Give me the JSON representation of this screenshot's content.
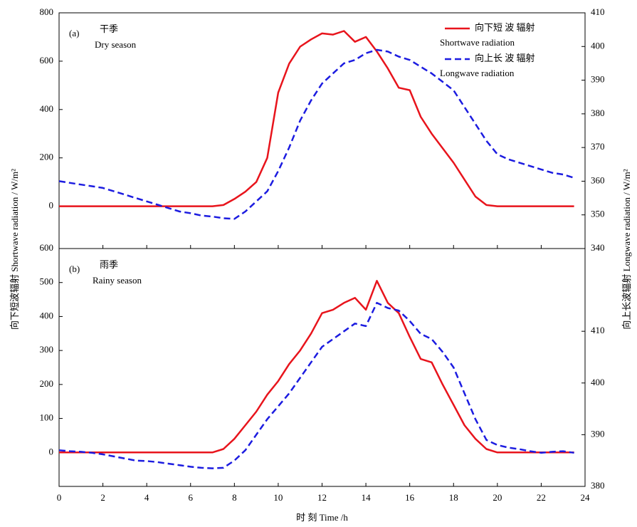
{
  "chart_data": [
    {
      "type": "line",
      "panel_label": "(a)",
      "season_cn": "干季",
      "season_en": "Dry season",
      "x": [
        0,
        0.5,
        1,
        1.5,
        2,
        2.5,
        3,
        3.5,
        4,
        4.5,
        5,
        5.5,
        6,
        6.5,
        7,
        7.5,
        8,
        8.5,
        9,
        9.5,
        10,
        10.5,
        11,
        11.5,
        12,
        12.5,
        13,
        13.5,
        14,
        14.5,
        15,
        15.5,
        16,
        16.5,
        17,
        17.5,
        18,
        18.5,
        19,
        19.5,
        20,
        20.5,
        21,
        21.5,
        22,
        22.5,
        23,
        23.5
      ],
      "xlim": [
        0,
        24
      ],
      "ylim": [
        -175,
        800
      ],
      "yticks": [
        0,
        200,
        400,
        600,
        800
      ],
      "y2lim": [
        340,
        410
      ],
      "y2ticks": [
        340,
        350,
        360,
        370,
        380,
        390,
        400,
        410
      ],
      "legend": "upper right",
      "series": [
        {
          "name": "向下短 波 辐射",
          "legend_sublabel": "Shortwave radiation",
          "color": "#e8141c",
          "style": "solid",
          "values": [
            0,
            0,
            0,
            0,
            0,
            0,
            0,
            0,
            0,
            0,
            0,
            0,
            0,
            0,
            0,
            5,
            30,
            60,
            100,
            200,
            470,
            590,
            660,
            690,
            715,
            710,
            725,
            680,
            700,
            640,
            570,
            490,
            480,
            370,
            300,
            240,
            180,
            110,
            40,
            5,
            0,
            0,
            0,
            0,
            0,
            0,
            0,
            0
          ]
        },
        {
          "name": "向上长 波 辐射",
          "legend_sublabel": "Longwave radiation",
          "color": "#1c1ce0",
          "style": "dashed",
          "axis": "y2",
          "values": [
            360,
            359.5,
            359,
            358.5,
            358,
            357,
            356,
            355,
            354,
            353,
            352,
            351,
            350.5,
            349.8,
            349.5,
            349,
            348.8,
            351,
            354,
            357,
            363,
            370,
            378,
            384,
            389,
            392,
            395,
            396,
            398,
            399,
            398.5,
            397,
            396,
            394,
            392,
            389.5,
            387,
            382,
            377,
            372,
            368,
            366.5,
            365.5,
            364.5,
            363.5,
            362.5,
            362,
            361
          ]
        }
      ]
    },
    {
      "type": "line",
      "panel_label": "(b)",
      "season_cn": "雨季",
      "season_en": "Rainy season",
      "xlabel": "时 刻 Time /h",
      "ylabel": "向下短波辐射 Shortwave radiation / W/m²",
      "y2label": "向上长波辐射 Longwave radiation / W/m²",
      "x": [
        0,
        0.5,
        1,
        1.5,
        2,
        2.5,
        3,
        3.5,
        4,
        4.5,
        5,
        5.5,
        6,
        6.5,
        7,
        7.5,
        8,
        8.5,
        9,
        9.5,
        10,
        10.5,
        11,
        11.5,
        12,
        12.5,
        13,
        13.5,
        14,
        14.5,
        15,
        15.5,
        16,
        16.5,
        17,
        17.5,
        18,
        18.5,
        19,
        19.5,
        20,
        20.5,
        21,
        21.5,
        22,
        22.5,
        23,
        23.5
      ],
      "xlim": [
        0,
        24
      ],
      "xticks": [
        0,
        2,
        4,
        6,
        8,
        10,
        12,
        14,
        16,
        18,
        20,
        22,
        24
      ],
      "ylim": [
        -100,
        600
      ],
      "yticks": [
        0,
        100,
        200,
        300,
        400,
        500,
        600
      ],
      "y2lim": [
        380,
        426
      ],
      "y2ticks": [
        380,
        390,
        400,
        410
      ],
      "series": [
        {
          "name": "向下短 波 辐射",
          "color": "#e8141c",
          "style": "solid",
          "values": [
            0,
            0,
            0,
            0,
            0,
            0,
            0,
            0,
            0,
            0,
            0,
            0,
            0,
            0,
            0,
            10,
            40,
            80,
            120,
            170,
            210,
            260,
            300,
            350,
            410,
            420,
            440,
            455,
            420,
            505,
            440,
            410,
            340,
            275,
            265,
            200,
            140,
            80,
            40,
            10,
            0,
            0,
            0,
            0,
            0,
            0,
            0,
            0
          ]
        },
        {
          "name": "向上长 波 辐射",
          "color": "#1c1ce0",
          "style": "dashed",
          "axis": "y2",
          "values": [
            387,
            386.8,
            386.7,
            386.5,
            386.2,
            385.8,
            385.4,
            385,
            384.9,
            384.7,
            384.4,
            384.1,
            383.8,
            383.6,
            383.5,
            383.6,
            385,
            387,
            390,
            393,
            395.5,
            398,
            401,
            404,
            407,
            408.5,
            410,
            411.5,
            411,
            415.5,
            414.5,
            414,
            412,
            409.5,
            408.5,
            406,
            403,
            398,
            393,
            389,
            388,
            387.5,
            387.2,
            386.8,
            386.5,
            386.7,
            386.8,
            386.5
          ]
        }
      ]
    }
  ]
}
